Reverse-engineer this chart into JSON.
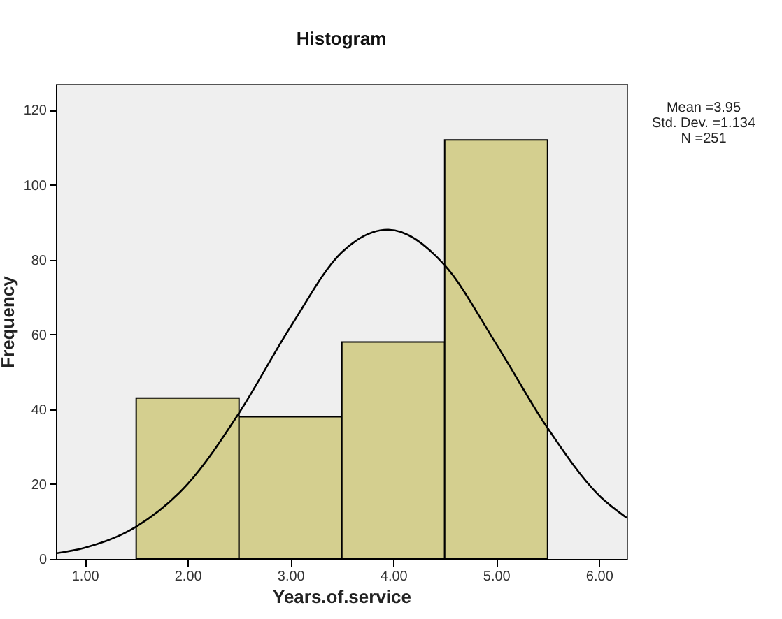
{
  "chart_data": {
    "type": "histogram",
    "title": "Histogram",
    "xlabel": "Years.of.service",
    "ylabel": "Frequency",
    "bins": [
      1.5,
      2.5,
      3.5,
      4.5,
      5.5
    ],
    "values": [
      43,
      38,
      58,
      112
    ],
    "color": "#d4cf8f",
    "series": [
      {
        "type": "line",
        "color": "#000000",
        "x": [
          0.72,
          1.0,
          1.5,
          2.0,
          2.5,
          3.0,
          3.5,
          3.95,
          4.5,
          5.0,
          5.5,
          6.0,
          6.27
        ],
        "values": [
          1.5,
          3,
          8.6,
          20,
          39,
          62,
          82,
          88,
          78.5,
          57.5,
          35,
          17,
          11
        ]
      }
    ],
    "xlim": [
      0.72,
      6.27
    ],
    "xticks": [
      {
        "value": 1,
        "label": "1.00"
      },
      {
        "value": 2,
        "label": "2.00"
      },
      {
        "value": 3,
        "label": "3.00"
      },
      {
        "value": 4,
        "label": "4.00"
      },
      {
        "value": 5,
        "label": "5.00"
      },
      {
        "value": 6,
        "label": "6.00"
      }
    ],
    "ylim": [
      0,
      127
    ],
    "yticks": [
      0,
      20,
      40,
      60,
      80,
      100,
      120
    ],
    "annotations": [
      "Mean =3.95",
      "Std. Dev. =1.134",
      "N =251"
    ],
    "grid": false,
    "marker": "none",
    "line_style": "solid"
  }
}
